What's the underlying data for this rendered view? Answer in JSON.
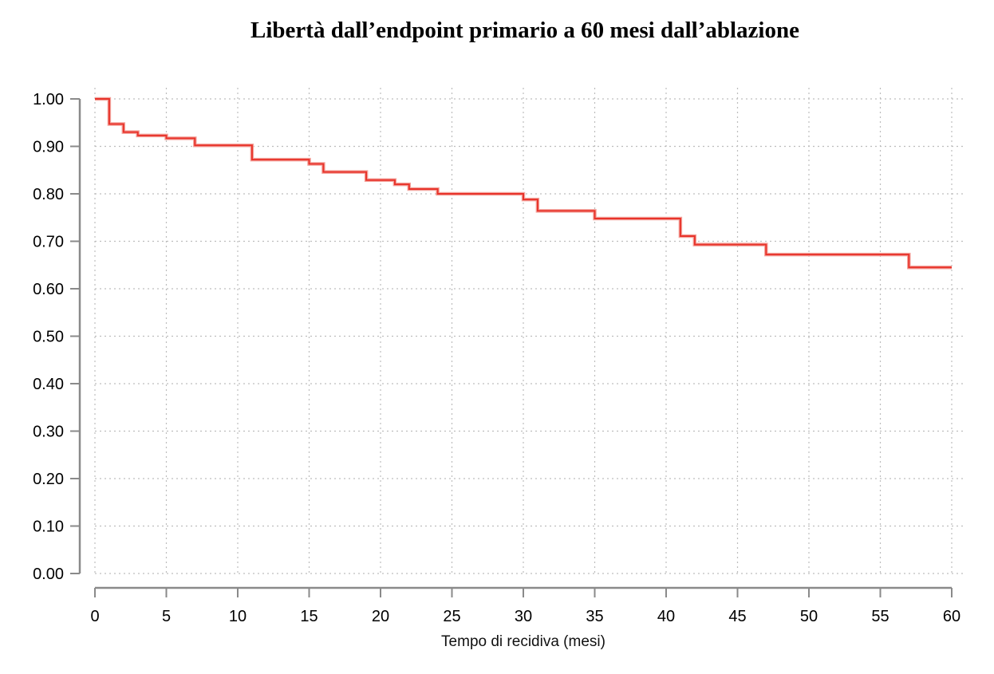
{
  "chart_data": {
    "type": "line",
    "title": "Libertà dall’endpoint primario a 60 mesi dall’ablazione",
    "xlabel": "Tempo di recidiva (mesi)",
    "ylabel": "",
    "xlim": [
      0,
      60
    ],
    "ylim": [
      0,
      1
    ],
    "x_ticks": [
      "0",
      "5",
      "10",
      "15",
      "20",
      "25",
      "30",
      "35",
      "40",
      "45",
      "50",
      "55",
      "60"
    ],
    "y_ticks": [
      "0.00",
      "0.10",
      "0.20",
      "0.30",
      "0.40",
      "0.50",
      "0.60",
      "0.70",
      "0.80",
      "0.90",
      "1.00"
    ],
    "grid": true,
    "step": true,
    "color": "#e8332a",
    "series": [
      {
        "x": [
          0,
          1,
          2,
          3,
          5,
          7,
          11,
          15,
          16,
          19,
          21,
          22,
          24,
          30,
          31,
          35,
          41,
          42,
          47,
          57,
          60
        ],
        "values": [
          1.0,
          0.947,
          0.93,
          0.923,
          0.917,
          0.902,
          0.872,
          0.863,
          0.846,
          0.829,
          0.82,
          0.81,
          0.8,
          0.788,
          0.764,
          0.748,
          0.711,
          0.693,
          0.672,
          0.645,
          0.645
        ]
      }
    ]
  }
}
